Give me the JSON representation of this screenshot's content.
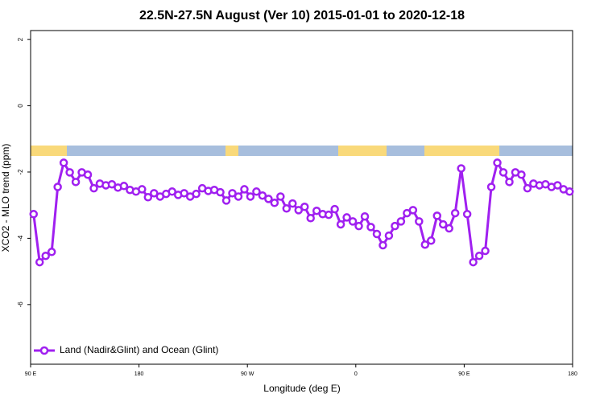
{
  "chart_data": {
    "type": "line",
    "title": "22.5N-27.5N August (Ver 10)   2015-01-01 to 2020-12-18",
    "x_label": "Longitude (deg E)",
    "y_label": "XCO2 - MLO trend (ppm)",
    "xlim": [
      90,
      540
    ],
    "ylim": [
      -7.8,
      2.27
    ],
    "xticks": [
      {
        "value": 90,
        "label": "90 E"
      },
      180,
      {
        "value": 270,
        "label": "90 W"
      },
      {
        "value": 360,
        "label": "0"
      },
      {
        "value": 450,
        "label": "90 E"
      },
      {
        "value": 540,
        "label": "180"
      }
    ],
    "yticks": [
      2,
      0,
      -2,
      -4,
      -6
    ],
    "legend": "bottomleft",
    "x": [
      92.5,
      97.5,
      102.5,
      107.5,
      112.5,
      117.5,
      122.5,
      127.5,
      132.5,
      137.5,
      142.5,
      147.5,
      152.5,
      157.5,
      162.5,
      167.5,
      172.5,
      177.5,
      182.5,
      187.5,
      192.5,
      197.5,
      202.5,
      207.5,
      212.5,
      217.5,
      222.5,
      227.5,
      232.5,
      237.5,
      242.5,
      247.5,
      252.5,
      257.5,
      262.5,
      267.5,
      272.5,
      277.5,
      282.5,
      287.5,
      292.5,
      297.5,
      302.5,
      307.5,
      312.5,
      317.5,
      322.5,
      327.5,
      332.5,
      337.5,
      342.5,
      347.5,
      352.5,
      357.5,
      362.5,
      367.5,
      372.5,
      377.5,
      382.5,
      387.5,
      392.5,
      397.5,
      402.5,
      407.5,
      412.5,
      417.5,
      422.5,
      427.5,
      432.5,
      437.5,
      442.5,
      447.5,
      452.5,
      457.5,
      462.5,
      467.5,
      472.5,
      477.5,
      482.5,
      487.5,
      492.5,
      497.5,
      502.5,
      507.5,
      512.5,
      517.5,
      522.5,
      527.5,
      532.5,
      537.5
    ],
    "series": [
      {
        "name": "Land (Nadir&Glint) and Ocean (Glint)",
        "color": "#a020f0",
        "values": [
          -3.27,
          -4.72,
          -4.53,
          -4.41,
          -2.45,
          -1.72,
          -2.01,
          -2.3,
          -2.01,
          -2.08,
          -2.49,
          -2.35,
          -2.4,
          -2.37,
          -2.47,
          -2.42,
          -2.54,
          -2.59,
          -2.52,
          -2.76,
          -2.64,
          -2.74,
          -2.66,
          -2.59,
          -2.69,
          -2.64,
          -2.74,
          -2.66,
          -2.49,
          -2.57,
          -2.54,
          -2.61,
          -2.86,
          -2.64,
          -2.74,
          -2.52,
          -2.74,
          -2.59,
          -2.71,
          -2.81,
          -2.93,
          -2.74,
          -3.1,
          -2.95,
          -3.15,
          -3.05,
          -3.39,
          -3.17,
          -3.27,
          -3.29,
          -3.12,
          -3.58,
          -3.37,
          -3.49,
          -3.63,
          -3.34,
          -3.66,
          -3.87,
          -4.21,
          -3.92,
          -3.63,
          -3.49,
          -3.24,
          -3.15,
          -3.49,
          -4.19,
          -4.07,
          -3.32,
          -3.58,
          -3.7,
          -3.24,
          -1.89,
          -3.27,
          -4.72,
          -4.53,
          -4.38,
          -2.45,
          -1.72,
          -2.01,
          -2.3,
          -2.01,
          -2.08,
          -2.49,
          -2.35,
          -2.4,
          -2.37,
          -2.45,
          -2.4,
          -2.52,
          -2.59
        ]
      }
    ]
  }
}
